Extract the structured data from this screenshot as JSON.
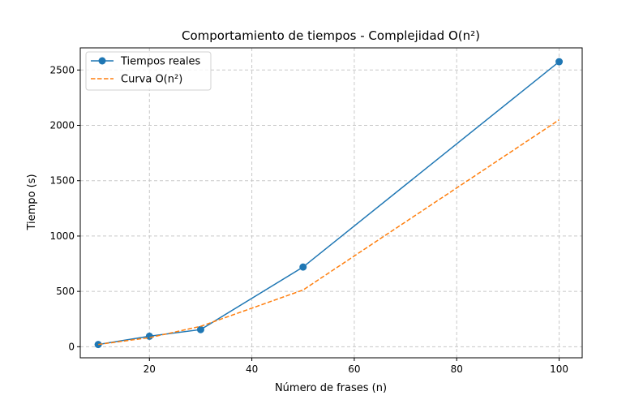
{
  "chart_data": {
    "type": "line",
    "title": "Comportamiento de tiempos - Complejidad O(n²)",
    "xlabel": "Número de frases (n)",
    "ylabel": "Tiempo (s)",
    "xlim": [
      6.5,
      104.5
    ],
    "ylim": [
      -100,
      2700
    ],
    "xticks": [
      20,
      40,
      60,
      80,
      100
    ],
    "yticks": [
      0,
      500,
      1000,
      1500,
      2000,
      2500
    ],
    "grid": true,
    "legend_position": "top-left",
    "series": [
      {
        "name": "Tiempos reales",
        "style": "solid",
        "marker": "circle",
        "color": "#1f77b4",
        "x": [
          10,
          20,
          30,
          50,
          100
        ],
        "y": [
          20,
          95,
          155,
          720,
          2575
        ]
      },
      {
        "name": "Curva O(n²)",
        "style": "dashed",
        "marker": "none",
        "color": "#ff7f0e",
        "x": [
          10,
          20,
          30,
          50,
          100
        ],
        "y": [
          20.5,
          82,
          184.5,
          512.5,
          2050
        ]
      }
    ]
  }
}
